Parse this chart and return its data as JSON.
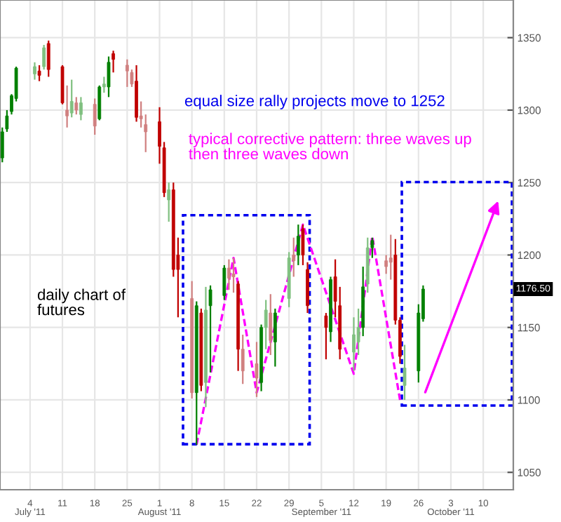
{
  "chart_data": {
    "type": "candlestick",
    "x": [
      "2011-06-28",
      "2011-06-29",
      "2011-06-30",
      "2011-07-01",
      "2011-07-05",
      "2011-07-06",
      "2011-07-07",
      "2011-07-08",
      "2011-07-11",
      "2011-07-12",
      "2011-07-13",
      "2011-07-14",
      "2011-07-15",
      "2011-07-18",
      "2011-07-19",
      "2011-07-20",
      "2011-07-21",
      "2011-07-22",
      "2011-07-25",
      "2011-07-26",
      "2011-07-27",
      "2011-07-28",
      "2011-07-29",
      "2011-08-01",
      "2011-08-02",
      "2011-08-03",
      "2011-08-04",
      "2011-08-05",
      "2011-08-08",
      "2011-08-09",
      "2011-08-10",
      "2011-08-11",
      "2011-08-12",
      "2011-08-15",
      "2011-08-16",
      "2011-08-17",
      "2011-08-18",
      "2011-08-19",
      "2011-08-22",
      "2011-08-23",
      "2011-08-24",
      "2011-08-25",
      "2011-08-26",
      "2011-08-29",
      "2011-08-30",
      "2011-08-31",
      "2011-09-01",
      "2011-09-02",
      "2011-09-06",
      "2011-09-07",
      "2011-09-08",
      "2011-09-09",
      "2011-09-12",
      "2011-09-13",
      "2011-09-14",
      "2011-09-15",
      "2011-09-16",
      "2011-09-19",
      "2011-09-20",
      "2011-09-21",
      "2011-09-22",
      "2011-09-23",
      "2011-09-26",
      "2011-09-27"
    ],
    "ohlc": [
      [
        1267,
        1288,
        1264,
        1285
      ],
      [
        1287,
        1300,
        1285,
        1296
      ],
      [
        1299,
        1311,
        1297,
        1310
      ],
      [
        1308,
        1330,
        1306,
        1329
      ],
      [
        1325,
        1333,
        1321,
        1330
      ],
      [
        1327,
        1331,
        1320,
        1324
      ],
      [
        1330,
        1345,
        1328,
        1343
      ],
      [
        1346,
        1348,
        1323,
        1328
      ],
      [
        1330,
        1331,
        1304,
        1305
      ],
      [
        1300,
        1317,
        1288,
        1296
      ],
      [
        1298,
        1321,
        1295,
        1306
      ],
      [
        1305,
        1309,
        1297,
        1300
      ],
      [
        1297,
        1309,
        1293,
        1305
      ],
      [
        1304,
        1308,
        1283,
        1289
      ],
      [
        1294,
        1317,
        1293,
        1316
      ],
      [
        1316,
        1323,
        1312,
        1318
      ],
      [
        1316,
        1337,
        1309,
        1333
      ],
      [
        1339,
        1341,
        1326,
        1335
      ],
      [
        1331,
        1335,
        1316,
        1327
      ],
      [
        1326,
        1328,
        1316,
        1318
      ],
      [
        1320,
        1331,
        1292,
        1295
      ],
      [
        1296,
        1306,
        1288,
        1294
      ],
      [
        1290,
        1297,
        1271,
        1285
      ],
      [
        1292,
        1302,
        1263,
        1275
      ],
      [
        1274,
        1278,
        1240,
        1243
      ],
      [
        1238,
        1250,
        1223,
        1245
      ],
      [
        1245,
        1250,
        1185,
        1190
      ],
      [
        1200,
        1212,
        1157,
        1190
      ],
      [
        1170,
        1182,
        1101,
        1105
      ],
      [
        1105,
        1168,
        1069,
        1165
      ],
      [
        1160,
        1163,
        1106,
        1110
      ],
      [
        1112,
        1178,
        1095,
        1162
      ],
      [
        1165,
        1179,
        1119,
        1176
      ],
      [
        1172,
        1193,
        1169,
        1191
      ],
      [
        1191,
        1197,
        1176,
        1184
      ],
      [
        1187,
        1198,
        1174,
        1185
      ],
      [
        1180,
        1182,
        1120,
        1135
      ],
      [
        1135,
        1145,
        1111,
        1120
      ],
      [
        1125,
        1140,
        1102,
        1115
      ],
      [
        1112,
        1152,
        1106,
        1150
      ],
      [
        1150,
        1169,
        1135,
        1162
      ],
      [
        1160,
        1173,
        1131,
        1141
      ],
      [
        1140,
        1163,
        1123,
        1160
      ],
      [
        1170,
        1202,
        1164,
        1198
      ],
      [
        1200,
        1212,
        1185,
        1196
      ],
      [
        1200,
        1221,
        1193,
        1213
      ],
      [
        1218,
        1221,
        1193,
        1200
      ],
      [
        1190,
        1195,
        1160,
        1165
      ],
      [
        1158,
        1160,
        1128,
        1150
      ],
      [
        1147,
        1185,
        1140,
        1183
      ],
      [
        1185,
        1197,
        1157,
        1168
      ],
      [
        1165,
        1178,
        1128,
        1135
      ],
      [
        1133,
        1157,
        1120,
        1145
      ],
      [
        1140,
        1163,
        1131,
        1150
      ],
      [
        1150,
        1192,
        1144,
        1178
      ],
      [
        1180,
        1212,
        1174,
        1205
      ],
      [
        1205,
        1212,
        1198,
        1210
      ],
      [
        1196,
        1200,
        1187,
        1192
      ],
      [
        1198,
        1214,
        1183,
        1195
      ],
      [
        1200,
        1211,
        1152,
        1155
      ],
      [
        1155,
        1157,
        1125,
        1130
      ],
      [
        1110,
        1138,
        1100,
        1122
      ],
      [
        1120,
        1166,
        1112,
        1160
      ],
      [
        1156,
        1179,
        1154,
        1176.5
      ]
    ],
    "colors": [
      "#008000",
      "#008000",
      "#008000",
      "#008000",
      "#80c080",
      "#c00000",
      "#80c080",
      "#c00000",
      "#c00000",
      "#d08080",
      "#80c080",
      "#d08080",
      "#80c080",
      "#d08080",
      "#008000",
      "#80c080",
      "#008000",
      "#c00000",
      "#d08080",
      "#d08080",
      "#c00000",
      "#d08080",
      "#d08080",
      "#c00000",
      "#c00000",
      "#80c080",
      "#c00000",
      "#c00000",
      "#d08080",
      "#008000",
      "#c00000",
      "#80c080",
      "#008000",
      "#008000",
      "#d08080",
      "#d08080",
      "#c00000",
      "#d08080",
      "#d08080",
      "#008000",
      "#80c080",
      "#d08080",
      "#008000",
      "#80c080",
      "#d08080",
      "#008000",
      "#c00000",
      "#c00000",
      "#c00000",
      "#008000",
      "#c00000",
      "#c00000",
      "#80c080",
      "#80c080",
      "#008000",
      "#80c080",
      "#008000",
      "#d08080",
      "#d08080",
      "#c00000",
      "#c00000",
      "#80c080",
      "#008000",
      "#008000"
    ],
    "xlim": [
      "2011-06-27T12:00",
      "2011-10-16T12:00"
    ],
    "xticks": [
      {
        "value": "2011-07-04",
        "label": "4\nJuly '11"
      },
      {
        "value": "2011-07-11",
        "label": "11"
      },
      {
        "value": "2011-07-18",
        "label": "18"
      },
      {
        "value": "2011-07-25",
        "label": "25"
      },
      {
        "value": "2011-08-01",
        "label": "1\nAugust '11"
      },
      {
        "value": "2011-08-08",
        "label": "8"
      },
      {
        "value": "2011-08-15",
        "label": "15"
      },
      {
        "value": "2011-08-22",
        "label": "22"
      },
      {
        "value": "2011-08-29",
        "label": "29"
      },
      {
        "value": "2011-09-05",
        "label": "5\nSeptember '11"
      },
      {
        "value": "2011-09-12",
        "label": "12"
      },
      {
        "value": "2011-09-19",
        "label": "19"
      },
      {
        "value": "2011-09-26",
        "label": "26"
      },
      {
        "value": "2011-10-03",
        "label": "3\nOctober '11"
      },
      {
        "value": "2011-10-10",
        "label": "10"
      }
    ],
    "series": [
      {
        "type": "line",
        "color": "#ff00ff",
        "line_style": "dashed",
        "x": [
          "2011-08-09",
          "2011-08-17",
          "2011-08-22",
          "2011-09-01",
          "2011-09-12",
          "2011-09-16",
          "2011-09-22"
        ],
        "values": [
          1069,
          1198,
          1105,
          1221,
          1118,
          1213,
          1100
        ]
      }
    ],
    "ylim": [
      1038,
      1376
    ],
    "yticks": [
      1050,
      1100,
      1150,
      1200,
      1250,
      1300,
      1350
    ],
    "grid": true,
    "annotations": [
      "equal size rally projects move to 1252",
      "typical corrective pattern: three waves up\nthen three waves down",
      "daily chart of\nfutures",
      {
        "text": "1176.50",
        "y": 1176.5
      }
    ]
  }
}
